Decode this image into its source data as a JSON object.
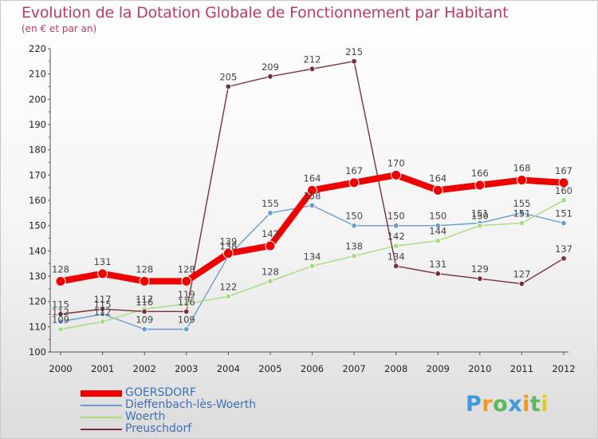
{
  "chart_data": {
    "type": "line",
    "title": "Evolution de la Dotation Globale de Fonctionnement par Habitant",
    "subtitle": "(en € et par an)",
    "xlabel": "",
    "ylabel": "",
    "ylim": [
      100,
      220
    ],
    "ytick_step": 10,
    "grid": false,
    "legend_position": "bottom-left",
    "categories": [
      "2000",
      "2001",
      "2002",
      "2003",
      "2004",
      "2005",
      "2006",
      "2007",
      "2008",
      "2009",
      "2010",
      "2011",
      "2012"
    ],
    "series": [
      {
        "name": "GOERSDORF",
        "color": "#ee0000",
        "values": [
          128,
          131,
          128,
          128,
          139,
          142,
          164,
          167,
          170,
          164,
          166,
          168,
          167
        ]
      },
      {
        "name": "Dieffenbach-lès-Woerth",
        "color": "#6a9ccf",
        "values": [
          112,
          115,
          109,
          109,
          138,
          155,
          158,
          150,
          150,
          150,
          151,
          155,
          151
        ]
      },
      {
        "name": "Woerth",
        "color": "#a6dc7e",
        "values": [
          109,
          112,
          117,
          119,
          122,
          128,
          134,
          138,
          142,
          144,
          150,
          151,
          160
        ]
      },
      {
        "name": "Preuschdorf",
        "color": "#7a2f3a",
        "values": [
          115,
          117,
          116,
          116,
          205,
          209,
          212,
          215,
          134,
          131,
          129,
          127,
          137
        ]
      }
    ]
  },
  "logo": {
    "letters": [
      "P",
      "r",
      "o",
      "x",
      "i",
      "t",
      "i"
    ],
    "colors": [
      "#3b9ad9",
      "#f39a1e",
      "#5cb85c",
      "#3b9ad9",
      "#f39a1e",
      "#5cb85c",
      "#e2c81f"
    ]
  }
}
